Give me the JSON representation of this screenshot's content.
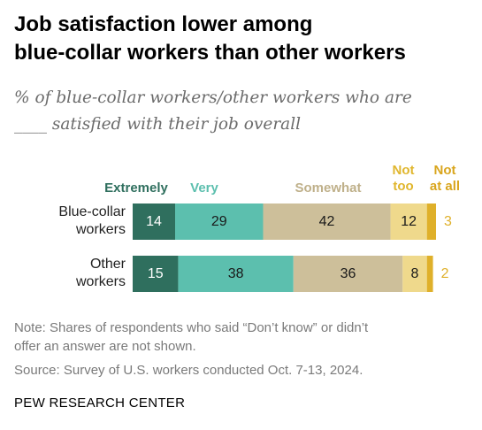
{
  "title_line1": "Job satisfaction lower among",
  "title_line2": "blue-collar workers than other workers",
  "subtitle_line1": "% of blue-collar workers/other workers who are",
  "subtitle_line2": "____ satisfied with their job overall",
  "legend": {
    "extremely": "Extremely",
    "very": "Very",
    "somewhat": "Somewhat",
    "not_too_1": "Not",
    "not_too_2": "too",
    "not_at_all_1": "Not",
    "not_at_all_2": "at all"
  },
  "rows": {
    "blue_collar_1": "Blue-collar",
    "blue_collar_2": "workers",
    "other_1": "Other",
    "other_2": "workers"
  },
  "note_line1": "Note: Shares of respondents who said “Don’t know” or didn’t",
  "note_line2": "offer an answer are not shown.",
  "source": "Source: Survey of U.S. workers conducted Oct. 7-13, 2024.",
  "org": "PEW RESEARCH CENTER",
  "colors": {
    "extremely": "#2f6f5e",
    "very": "#5cbfae",
    "somewhat": "#cdbf9a",
    "not_too": "#efd98c",
    "not_at_all": "#dfb02a",
    "extremely_text": "#2f6f5e",
    "very_text": "#5cbfae",
    "somewhat_text": "#bfb08a",
    "not_too_text": "#e0b62d",
    "not_at_all_text": "#d9a51c"
  },
  "chart_data": {
    "type": "bar",
    "orientation": "horizontal",
    "stacked": true,
    "categories": [
      "Blue-collar workers",
      "Other workers"
    ],
    "series": [
      {
        "name": "Extremely",
        "values": [
          14,
          15
        ]
      },
      {
        "name": "Very",
        "values": [
          29,
          38
        ]
      },
      {
        "name": "Somewhat",
        "values": [
          42,
          36
        ]
      },
      {
        "name": "Not too",
        "values": [
          12,
          8
        ]
      },
      {
        "name": "Not at all",
        "values": [
          3,
          2
        ]
      }
    ],
    "legend_position": "top"
  }
}
